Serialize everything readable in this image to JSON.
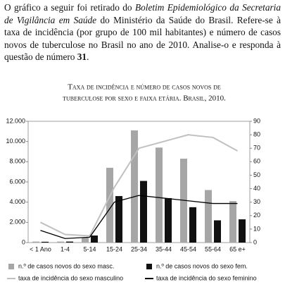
{
  "paragraph": [
    "O gráfico a seguir foi retirado do ",
    "Boletim Epidemiológico da Secretaria de Vigilância em Saúde",
    " do Ministério da Saúde do Brasil. Refere-se à taxa de incidência (por grupo de 100 mil habitantes) e número de casos novos de tuberculose no Brasil no ano de 2010. Analise-o e responda à questão de número ",
    "31",
    "."
  ],
  "chart_data": {
    "type": "bar",
    "title": [
      "Taxa de incidência e número de casos novos de",
      "tuberculose por sexo e faixa etária. Brasil, 2010."
    ],
    "categories": [
      "< 1 Ano",
      "1-4",
      "5-14",
      "15-24",
      "25-34",
      "35-44",
      "45-54",
      "55-64",
      "65 e+"
    ],
    "series": [
      {
        "name": "n.º de casos novos do sexo masc.",
        "type": "bar",
        "color": "#a6a6a6",
        "values": [
          100,
          100,
          500,
          7400,
          11100,
          9400,
          8300,
          5200,
          4100
        ]
      },
      {
        "name": "n.º de casos novos do sexo fem.",
        "type": "bar",
        "color": "#111111",
        "values": [
          80,
          100,
          700,
          4600,
          6100,
          4400,
          3500,
          2200,
          2300
        ]
      },
      {
        "name": "taxa de incidência do sexo masculino",
        "type": "line",
        "axis": "y2",
        "color": "#c0c0c0",
        "values": [
          15,
          6,
          5,
          41,
          70,
          75,
          80,
          78,
          68
        ]
      },
      {
        "name": "taxa de incidência do sexo feminino",
        "type": "line",
        "axis": "y2",
        "color": "#000000",
        "values": [
          9,
          3,
          4,
          30,
          35,
          33,
          31,
          29,
          29
        ]
      }
    ],
    "ylim": [
      0,
      12000
    ],
    "yticks": [
      0,
      {
        "value": 2000,
        "label": "2.000"
      },
      {
        "value": 4000,
        "label": "4.000"
      },
      {
        "value": 6000,
        "label": "6.000"
      },
      {
        "value": 8000,
        "label": "8.000"
      },
      {
        "value": 10000,
        "label": "10.000"
      },
      {
        "value": 12000,
        "label": "12.000"
      }
    ],
    "y2lim": [
      0,
      90
    ],
    "y2ticks": [
      0,
      10,
      20,
      30,
      40,
      50,
      60,
      70,
      80,
      90
    ],
    "grid": false
  }
}
